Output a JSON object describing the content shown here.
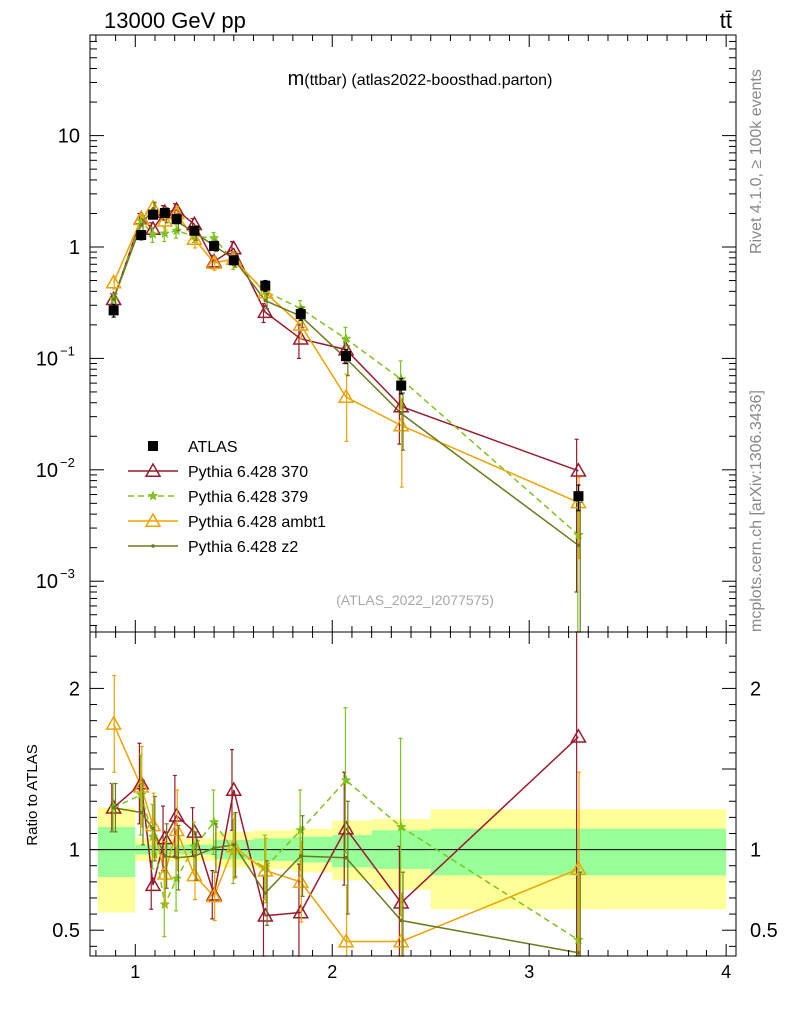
{
  "header": {
    "energy": "13000 GeV pp",
    "process": "tt̄"
  },
  "side_labels": {
    "rivet": "Rivet 4.1.0, ≥ 100k events",
    "mcplots": "mcplots.cern.ch [arXiv:1306.3436]"
  },
  "chart_data": {
    "type": "line",
    "title": "m(ttbar) (atlas2022-boosthad.parton)",
    "title_main": "m",
    "title_rest": "(ttbar) (atlas2022-boosthad.parton)",
    "watermark": "(ATLAS_2022_I2077575)",
    "xlim": [
      0.77,
      4.05
    ],
    "x_ticks": [
      1,
      2,
      3,
      4
    ],
    "x_tick_labels": [
      "1",
      "2",
      "3",
      "4"
    ],
    "main": {
      "yscale": "log",
      "ylim": [
        0.00035,
        80
      ],
      "y_ticks": [
        {
          "v": 10,
          "label": "10"
        },
        {
          "v": 1,
          "label": "1"
        },
        {
          "v": 0.1,
          "base": "10",
          "exp": "−1"
        },
        {
          "v": 0.01,
          "base": "10",
          "exp": "−2"
        },
        {
          "v": 0.001,
          "base": "10",
          "exp": "−3"
        }
      ]
    },
    "ratio": {
      "ylabel": "Ratio to ATLAS",
      "ylim": [
        0.34,
        2.35
      ],
      "y_ticks": [
        {
          "v": 2,
          "label": "2"
        },
        {
          "v": 1,
          "label": "1"
        },
        {
          "v": 0.5,
          "label": "0.5"
        }
      ],
      "bands": [
        {
          "x0": 0.81,
          "x1": 1.0,
          "in_lo": 0.83,
          "in_hi": 1.14,
          "out_lo": 0.61,
          "out_hi": 1.26
        },
        {
          "x0": 1.0,
          "x1": 1.4,
          "in_lo": 0.97,
          "in_hi": 1.03,
          "out_lo": 0.93,
          "out_hi": 1.07
        },
        {
          "x0": 1.4,
          "x1": 1.6,
          "in_lo": 0.94,
          "in_hi": 1.06,
          "out_lo": 0.89,
          "out_hi": 1.11
        },
        {
          "x0": 1.6,
          "x1": 1.8,
          "in_lo": 0.93,
          "in_hi": 1.07,
          "out_lo": 0.88,
          "out_hi": 1.12
        },
        {
          "x0": 1.8,
          "x1": 2.0,
          "in_lo": 0.92,
          "in_hi": 1.08,
          "out_lo": 0.86,
          "out_hi": 1.13
        },
        {
          "x0": 2.0,
          "x1": 2.2,
          "in_lo": 0.89,
          "in_hi": 1.09,
          "out_lo": 0.81,
          "out_hi": 1.18
        },
        {
          "x0": 2.2,
          "x1": 2.5,
          "in_lo": 0.88,
          "in_hi": 1.12,
          "out_lo": 0.75,
          "out_hi": 1.19
        },
        {
          "x0": 2.5,
          "x1": 4.0,
          "in_lo": 0.84,
          "in_hi": 1.13,
          "out_lo": 0.63,
          "out_hi": 1.25
        }
      ]
    },
    "x": [
      0.89,
      1.03,
      1.09,
      1.15,
      1.21,
      1.3,
      1.4,
      1.5,
      1.66,
      1.84,
      2.07,
      2.35,
      3.25
    ],
    "data": {
      "name": "ATLAS",
      "y": [
        0.27,
        1.28,
        1.95,
        2.02,
        1.78,
        1.4,
        1.02,
        0.76,
        0.45,
        0.25,
        0.105,
        0.057,
        0.0058
      ],
      "err": [
        0.035,
        0.12,
        0.16,
        0.15,
        0.12,
        0.1,
        0.08,
        0.07,
        0.05,
        0.03,
        0.015,
        0.009,
        0.0015
      ]
    },
    "series": [
      {
        "name": "Pythia 6.428 370",
        "color": "#9a1a2e",
        "marker": "triangle",
        "dash": "",
        "y": [
          0.34,
          1.8,
          1.45,
          2.05,
          2.15,
          1.6,
          0.74,
          0.97,
          0.26,
          0.15,
          0.12,
          0.037,
          0.0098
        ],
        "err": [
          0.04,
          0.2,
          0.2,
          0.3,
          0.3,
          0.2,
          0.1,
          0.15,
          0.05,
          0.05,
          0.03,
          0.02,
          0.009
        ]
      },
      {
        "name": "Pythia 6.428 379",
        "color": "#7ec41e",
        "marker": "star",
        "dash": "6 4",
        "y": [
          0.34,
          1.72,
          1.3,
          1.32,
          1.4,
          1.25,
          1.2,
          0.75,
          0.4,
          0.28,
          0.15,
          0.065,
          0.0026
        ],
        "err": [
          0.04,
          0.2,
          0.2,
          0.2,
          0.2,
          0.15,
          0.15,
          0.12,
          0.06,
          0.05,
          0.04,
          0.03,
          0.0025
        ]
      },
      {
        "name": "Pythia 6.428 ambt1",
        "color": "#f0a300",
        "marker": "triangle",
        "dash": "",
        "y": [
          0.48,
          1.78,
          2.25,
          1.72,
          2.0,
          1.18,
          0.72,
          0.78,
          0.39,
          0.2,
          0.045,
          0.025,
          0.0051
        ],
        "err": [
          0.06,
          0.2,
          0.3,
          0.3,
          0.3,
          0.2,
          0.1,
          0.12,
          0.06,
          0.05,
          0.027,
          0.018,
          0.0035
        ]
      },
      {
        "name": "Pythia 6.428 z2",
        "color": "#6b7a1a",
        "marker": "dot",
        "dash": "",
        "y": [
          0.34,
          1.58,
          2.2,
          1.95,
          1.7,
          1.35,
          1.03,
          0.78,
          0.33,
          0.24,
          0.1,
          0.032,
          0.0021
        ],
        "err": [
          0.04,
          0.2,
          0.3,
          0.3,
          0.3,
          0.2,
          0.12,
          0.12,
          0.05,
          0.05,
          0.03,
          0.017,
          0.003
        ]
      }
    ],
    "ratio_data": {
      "x": [
        0.89,
        1.03,
        1.09,
        1.15,
        1.21,
        1.3,
        1.4,
        1.5,
        1.66,
        1.84,
        2.07,
        2.35,
        3.25
      ],
      "series": [
        {
          "name": "Pythia 6.428 370",
          "y": [
            1.26,
            1.41,
            0.78,
            1.07,
            1.21,
            1.11,
            0.72,
            1.37,
            0.59,
            0.61,
            1.13,
            0.67,
            1.7
          ],
          "err": [
            0.15,
            0.25,
            0.15,
            0.2,
            0.25,
            0.15,
            0.15,
            0.25,
            0.25,
            0.3,
            0.35,
            0.35,
            1.5
          ]
        },
        {
          "name": "Pythia 6.428 379",
          "y": [
            1.26,
            1.34,
            1.08,
            0.66,
            0.82,
            1.02,
            1.17,
            0.99,
            0.89,
            1.12,
            1.43,
            1.14,
            0.44
          ],
          "err": [
            0.15,
            0.25,
            0.2,
            0.2,
            0.2,
            0.15,
            0.2,
            0.2,
            0.2,
            0.25,
            0.45,
            0.55,
            0.4
          ]
        },
        {
          "name": "Pythia 6.428 ambt1",
          "y": [
            1.78,
            1.39,
            1.15,
            0.85,
            1.12,
            0.84,
            0.71,
            1.02,
            0.87,
            0.8,
            0.43,
            0.43,
            0.88
          ],
          "err": [
            0.3,
            0.25,
            0.2,
            0.2,
            0.25,
            0.15,
            0.15,
            0.2,
            0.2,
            0.25,
            0.35,
            0.3,
            0.6
          ]
        },
        {
          "name": "Pythia 6.428 z2",
          "y": [
            1.26,
            1.23,
            1.13,
            0.96,
            0.95,
            0.96,
            1.01,
            1.03,
            0.73,
            0.96,
            0.95,
            0.56,
            0.36
          ],
          "err": [
            0.15,
            0.2,
            0.2,
            0.2,
            0.2,
            0.15,
            0.15,
            0.2,
            0.2,
            0.25,
            0.35,
            0.3,
            0.5
          ]
        }
      ]
    }
  }
}
